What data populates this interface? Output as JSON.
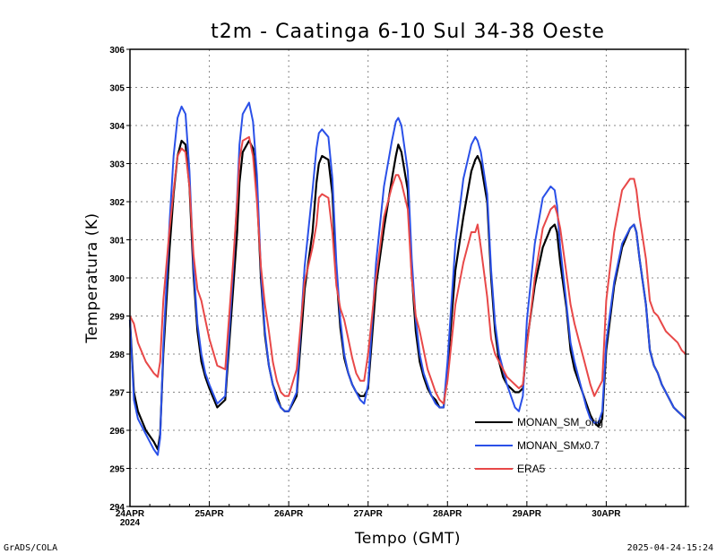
{
  "chart_data": {
    "type": "line",
    "title": "t2m - Caatinga  6-10 Sul  34-38 Oeste",
    "xlabel": "Tempo (GMT)",
    "ylabel": "Temperatura (K)",
    "ylim": [
      294,
      306
    ],
    "xlim": [
      0,
      7
    ],
    "y_ticks": [
      294,
      295,
      296,
      297,
      298,
      299,
      300,
      301,
      302,
      303,
      304,
      305,
      306
    ],
    "x_ticks": [
      {
        "value": 0,
        "label": "24APR",
        "sublabel": "2024"
      },
      {
        "value": 1,
        "label": "25APR",
        "sublabel": ""
      },
      {
        "value": 2,
        "label": "26APR",
        "sublabel": ""
      },
      {
        "value": 3,
        "label": "27APR",
        "sublabel": ""
      },
      {
        "value": 4,
        "label": "28APR",
        "sublabel": ""
      },
      {
        "value": 5,
        "label": "29APR",
        "sublabel": ""
      },
      {
        "value": 6,
        "label": "30APR",
        "sublabel": ""
      }
    ],
    "grid": true,
    "legend_position": "bottom-right",
    "series": [
      {
        "name": "MONAN_SM_orig",
        "color": "#000000",
        "x": [
          0,
          0.05,
          0.1,
          0.2,
          0.3,
          0.35,
          0.38,
          0.42,
          0.5,
          0.55,
          0.6,
          0.65,
          0.7,
          0.75,
          0.8,
          0.85,
          0.9,
          0.95,
          1.0,
          1.1,
          1.2,
          1.3,
          1.35,
          1.38,
          1.42,
          1.5,
          1.55,
          1.6,
          1.65,
          1.7,
          1.75,
          1.8,
          1.85,
          1.9,
          1.95,
          2.0,
          2.1,
          2.2,
          2.3,
          2.35,
          2.38,
          2.42,
          2.5,
          2.55,
          2.6,
          2.65,
          2.7,
          2.75,
          2.8,
          2.85,
          2.9,
          2.95,
          3.0,
          3.1,
          3.2,
          3.3,
          3.35,
          3.38,
          3.42,
          3.5,
          3.55,
          3.6,
          3.65,
          3.7,
          3.75,
          3.8,
          3.85,
          3.9,
          3.95,
          4.0,
          4.1,
          4.2,
          4.3,
          4.35,
          4.38,
          4.42,
          4.5,
          4.55,
          4.6,
          4.65,
          4.7,
          4.75,
          4.8,
          4.85,
          4.9,
          4.95,
          5.0,
          5.1,
          5.2,
          5.3,
          5.35,
          5.38,
          5.42,
          5.5,
          5.55,
          5.6,
          5.65,
          5.7,
          5.75,
          5.8,
          5.85,
          5.9,
          5.95,
          6.0,
          6.1,
          6.2,
          6.3,
          6.35,
          6.38,
          6.42,
          6.5,
          6.55,
          6.6,
          6.65,
          6.7,
          6.75,
          6.8,
          6.85,
          6.9,
          6.95,
          7.0
        ],
        "y": [
          298.9,
          297.0,
          296.5,
          296.0,
          295.7,
          295.5,
          295.9,
          298.0,
          300.8,
          302.2,
          303.2,
          303.6,
          303.5,
          302.4,
          300.1,
          298.6,
          297.8,
          297.4,
          297.1,
          296.6,
          296.8,
          299.7,
          301.2,
          302.5,
          303.3,
          303.6,
          303.4,
          302.3,
          300.0,
          298.5,
          297.7,
          297.2,
          296.9,
          296.6,
          296.5,
          296.5,
          296.9,
          299.7,
          301.2,
          302.5,
          303.0,
          303.2,
          303.1,
          302.2,
          300.1,
          298.7,
          297.9,
          297.5,
          297.2,
          297.0,
          296.9,
          296.9,
          297.1,
          299.8,
          301.3,
          302.6,
          303.2,
          303.5,
          303.3,
          302.3,
          300.1,
          298.6,
          297.8,
          297.4,
          297.1,
          296.9,
          296.8,
          296.6,
          296.6,
          297.6,
          300.2,
          301.6,
          302.8,
          303.1,
          303.2,
          303.0,
          302.0,
          300.0,
          298.6,
          297.8,
          297.4,
          297.2,
          297.1,
          297.0,
          297.0,
          297.1,
          298.3,
          299.8,
          300.8,
          301.3,
          301.4,
          301.2,
          300.4,
          299.2,
          298.1,
          297.6,
          297.3,
          297.0,
          296.7,
          296.4,
          296.2,
          296.1,
          296.3,
          298.1,
          299.8,
          300.8,
          301.3,
          301.4,
          301.2,
          300.5,
          299.3,
          298.1,
          297.7,
          297.5,
          297.2,
          297.0,
          296.8,
          296.6,
          296.5,
          296.4,
          296.3
        ]
      },
      {
        "name": "MONAN_SMx0.7",
        "color": "#2a50e8",
        "x": [
          0,
          0.05,
          0.1,
          0.2,
          0.3,
          0.35,
          0.38,
          0.42,
          0.5,
          0.55,
          0.6,
          0.65,
          0.7,
          0.75,
          0.8,
          0.85,
          0.9,
          0.95,
          1.0,
          1.1,
          1.2,
          1.3,
          1.35,
          1.38,
          1.42,
          1.5,
          1.55,
          1.6,
          1.65,
          1.7,
          1.75,
          1.8,
          1.85,
          1.9,
          1.95,
          2.0,
          2.1,
          2.2,
          2.3,
          2.35,
          2.38,
          2.42,
          2.5,
          2.55,
          2.6,
          2.65,
          2.7,
          2.75,
          2.8,
          2.85,
          2.9,
          2.95,
          3.0,
          3.1,
          3.2,
          3.3,
          3.35,
          3.38,
          3.42,
          3.5,
          3.55,
          3.6,
          3.65,
          3.7,
          3.75,
          3.8,
          3.85,
          3.9,
          3.95,
          4.0,
          4.1,
          4.2,
          4.3,
          4.35,
          4.38,
          4.42,
          4.5,
          4.55,
          4.6,
          4.65,
          4.7,
          4.75,
          4.8,
          4.85,
          4.9,
          4.95,
          5.0,
          5.1,
          5.2,
          5.3,
          5.35,
          5.38,
          5.42,
          5.5,
          5.55,
          5.6,
          5.65,
          5.7,
          5.75,
          5.8,
          5.85,
          5.9,
          5.95,
          6.0,
          6.1,
          6.2,
          6.3,
          6.35,
          6.38,
          6.42,
          6.5,
          6.55,
          6.6,
          6.65,
          6.7,
          6.75,
          6.8,
          6.85,
          6.9,
          6.95,
          7.0
        ],
        "y": [
          298.9,
          296.8,
          296.3,
          295.9,
          295.5,
          295.35,
          295.8,
          298.2,
          301.5,
          303.2,
          304.2,
          304.5,
          304.3,
          302.8,
          300.3,
          298.8,
          298.0,
          297.5,
          297.2,
          296.7,
          296.9,
          300.2,
          302.1,
          303.5,
          304.3,
          304.6,
          304.1,
          302.7,
          300.2,
          298.6,
          297.7,
          297.2,
          296.8,
          296.6,
          296.5,
          296.5,
          297.0,
          300.3,
          302.3,
          303.4,
          303.8,
          303.9,
          303.7,
          302.6,
          300.4,
          298.9,
          298.0,
          297.5,
          297.2,
          297.0,
          296.8,
          296.7,
          297.2,
          300.4,
          302.4,
          303.6,
          304.1,
          304.2,
          304.0,
          302.8,
          300.5,
          298.9,
          298.0,
          297.5,
          297.2,
          296.9,
          296.7,
          296.6,
          296.6,
          297.8,
          300.9,
          302.6,
          303.5,
          303.7,
          303.6,
          303.3,
          302.2,
          300.2,
          298.8,
          298.0,
          297.6,
          297.2,
          296.9,
          296.6,
          296.5,
          296.9,
          298.9,
          300.9,
          302.1,
          302.4,
          302.3,
          301.9,
          300.8,
          299.3,
          298.3,
          297.8,
          297.4,
          297.0,
          296.6,
          296.3,
          296.2,
          296.2,
          296.5,
          298.3,
          299.9,
          300.9,
          301.3,
          301.4,
          301.2,
          300.5,
          299.3,
          298.1,
          297.7,
          297.5,
          297.2,
          297.0,
          296.8,
          296.6,
          296.5,
          296.4,
          296.3
        ]
      },
      {
        "name": "ERA5",
        "color": "#e84848",
        "x": [
          0,
          0.05,
          0.1,
          0.2,
          0.3,
          0.35,
          0.38,
          0.42,
          0.5,
          0.55,
          0.6,
          0.65,
          0.7,
          0.75,
          0.8,
          0.85,
          0.9,
          0.95,
          1.0,
          1.1,
          1.2,
          1.3,
          1.35,
          1.38,
          1.42,
          1.5,
          1.55,
          1.6,
          1.65,
          1.7,
          1.75,
          1.8,
          1.85,
          1.9,
          1.95,
          2.0,
          2.1,
          2.2,
          2.3,
          2.35,
          2.38,
          2.42,
          2.5,
          2.55,
          2.6,
          2.65,
          2.7,
          2.75,
          2.8,
          2.85,
          2.9,
          2.95,
          3.0,
          3.1,
          3.2,
          3.3,
          3.35,
          3.38,
          3.42,
          3.5,
          3.55,
          3.6,
          3.65,
          3.7,
          3.75,
          3.8,
          3.85,
          3.9,
          3.95,
          4.0,
          4.1,
          4.2,
          4.3,
          4.35,
          4.38,
          4.42,
          4.5,
          4.55,
          4.6,
          4.65,
          4.7,
          4.75,
          4.8,
          4.85,
          4.9,
          4.95,
          5.0,
          5.1,
          5.2,
          5.3,
          5.35,
          5.38,
          5.42,
          5.5,
          5.55,
          5.6,
          5.65,
          5.7,
          5.75,
          5.8,
          5.85,
          5.9,
          5.95,
          6.0,
          6.1,
          6.2,
          6.3,
          6.35,
          6.38,
          6.42,
          6.5,
          6.55,
          6.6,
          6.65,
          6.7,
          6.75,
          6.8,
          6.85,
          6.9,
          6.95,
          7.0
        ],
        "y": [
          299.0,
          298.8,
          298.3,
          297.8,
          297.5,
          297.4,
          297.8,
          299.4,
          301.3,
          302.3,
          303.2,
          303.4,
          303.3,
          302.4,
          300.6,
          299.7,
          299.4,
          298.9,
          298.4,
          297.7,
          297.6,
          300.4,
          302.0,
          303.1,
          303.6,
          303.7,
          303.2,
          302.0,
          300.3,
          299.3,
          298.6,
          297.8,
          297.3,
          297.0,
          296.9,
          296.9,
          297.6,
          299.9,
          300.8,
          301.4,
          302.1,
          302.2,
          302.1,
          301.2,
          299.8,
          299.2,
          298.9,
          298.4,
          297.9,
          297.5,
          297.3,
          297.3,
          298.0,
          300.0,
          301.6,
          302.4,
          302.7,
          302.7,
          302.5,
          301.8,
          300.0,
          299.0,
          298.6,
          298.1,
          297.6,
          297.3,
          297.0,
          296.8,
          296.7,
          297.3,
          299.3,
          300.4,
          301.2,
          301.2,
          301.4,
          300.8,
          299.5,
          298.4,
          298.0,
          297.8,
          297.6,
          297.4,
          297.3,
          297.2,
          297.1,
          297.2,
          298.2,
          300.0,
          301.3,
          301.8,
          301.9,
          301.7,
          301.3,
          300.1,
          299.3,
          298.8,
          298.4,
          298.0,
          297.6,
          297.2,
          296.9,
          297.1,
          297.3,
          299.4,
          301.2,
          302.3,
          302.6,
          302.6,
          302.3,
          301.6,
          300.5,
          299.4,
          299.1,
          299.0,
          298.8,
          298.6,
          298.5,
          298.4,
          298.3,
          298.1,
          298.0
        ]
      }
    ]
  },
  "footer": {
    "left": "GrADS/COLA",
    "right": "2025-04-24-15:24"
  }
}
